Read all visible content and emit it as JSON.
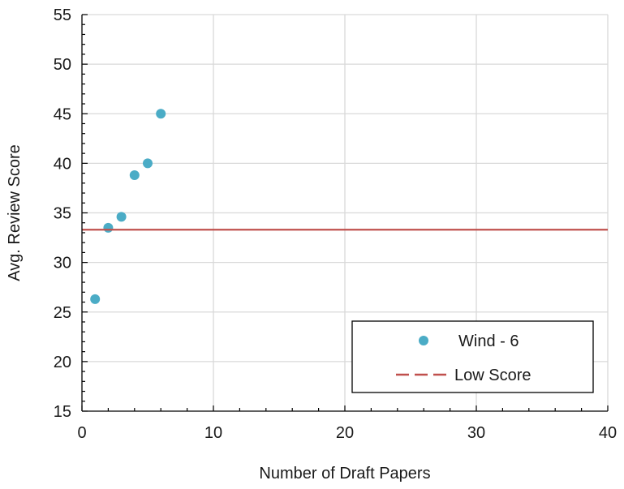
{
  "chart_data": {
    "type": "scatter",
    "title": "",
    "xlabel": "Number of Draft Papers",
    "ylabel": "Avg. Review Score",
    "xlim": [
      0,
      40
    ],
    "ylim": [
      15,
      55
    ],
    "x_ticks": [
      "0",
      "10",
      "20",
      "30",
      "40"
    ],
    "y_ticks": [
      "15",
      "20",
      "25",
      "30",
      "35",
      "40",
      "45",
      "50",
      "55"
    ],
    "grid": true,
    "legend_position": "bottom-right",
    "series": [
      {
        "name": "Wind - 6",
        "kind": "scatter",
        "color": "#4BACC6",
        "points": [
          {
            "x": 1,
            "y": 26.3
          },
          {
            "x": 2,
            "y": 33.5
          },
          {
            "x": 3,
            "y": 34.6
          },
          {
            "x": 4,
            "y": 38.8
          },
          {
            "x": 5,
            "y": 40.0
          },
          {
            "x": 6,
            "y": 45.0
          }
        ]
      },
      {
        "name": "Low Score",
        "kind": "hline",
        "color": "#C0504D",
        "y": 33.3
      }
    ]
  }
}
